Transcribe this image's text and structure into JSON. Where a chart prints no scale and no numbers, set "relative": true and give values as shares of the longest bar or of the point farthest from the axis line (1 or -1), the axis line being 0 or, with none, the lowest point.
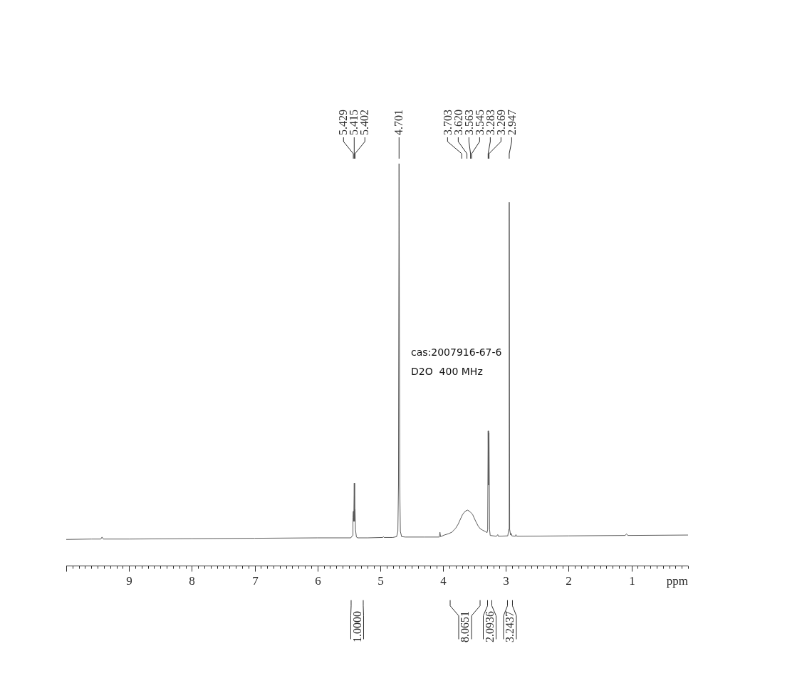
{
  "chart_data": {
    "type": "line",
    "relative": true,
    "color": "#5a5a5a",
    "marker": "none",
    "xlabel": "ppm",
    "xlim": [
      10,
      0.1
    ],
    "xticks": [
      {
        "value": 10,
        "label": null
      },
      {
        "value": 9.9,
        "label": null
      },
      {
        "value": 9.8,
        "label": null
      },
      {
        "value": 9.7,
        "label": null
      },
      {
        "value": 9.6,
        "label": null
      },
      {
        "value": 9.5,
        "label": null
      },
      {
        "value": 9.4,
        "label": null
      },
      {
        "value": 9.3,
        "label": null
      },
      {
        "value": 9.2,
        "label": null
      },
      {
        "value": 9.1,
        "label": null
      },
      9,
      {
        "value": 8.9,
        "label": null
      },
      {
        "value": 8.8,
        "label": null
      },
      {
        "value": 8.7,
        "label": null
      },
      {
        "value": 8.6,
        "label": null
      },
      {
        "value": 8.5,
        "label": null
      },
      {
        "value": 8.4,
        "label": null
      },
      {
        "value": 8.3,
        "label": null
      },
      {
        "value": 8.2,
        "label": null
      },
      {
        "value": 8.1,
        "label": null
      },
      8,
      {
        "value": 7.9,
        "label": null
      },
      {
        "value": 7.8,
        "label": null
      },
      {
        "value": 7.7,
        "label": null
      },
      {
        "value": 7.6,
        "label": null
      },
      {
        "value": 7.5,
        "label": null
      },
      {
        "value": 7.4,
        "label": null
      },
      {
        "value": 7.3,
        "label": null
      },
      {
        "value": 7.2,
        "label": null
      },
      {
        "value": 7.1,
        "label": null
      },
      7,
      {
        "value": 6.9,
        "label": null
      },
      {
        "value": 6.8,
        "label": null
      },
      {
        "value": 6.7,
        "label": null
      },
      {
        "value": 6.6,
        "label": null
      },
      {
        "value": 6.5,
        "label": null
      },
      {
        "value": 6.4,
        "label": null
      },
      {
        "value": 6.3,
        "label": null
      },
      {
        "value": 6.2,
        "label": null
      },
      {
        "value": 6.1,
        "label": null
      },
      6,
      {
        "value": 5.9,
        "label": null
      },
      {
        "value": 5.8,
        "label": null
      },
      {
        "value": 5.7,
        "label": null
      },
      {
        "value": 5.6,
        "label": null
      },
      {
        "value": 5.5,
        "label": null
      },
      {
        "value": 5.4,
        "label": null
      },
      {
        "value": 5.3,
        "label": null
      },
      {
        "value": 5.2,
        "label": null
      },
      {
        "value": 5.1,
        "label": null
      },
      5,
      {
        "value": 4.9,
        "label": null
      },
      {
        "value": 4.8,
        "label": null
      },
      {
        "value": 4.7,
        "label": null
      },
      {
        "value": 4.6,
        "label": null
      },
      {
        "value": 4.5,
        "label": null
      },
      {
        "value": 4.4,
        "label": null
      },
      {
        "value": 4.3,
        "label": null
      },
      {
        "value": 4.2,
        "label": null
      },
      {
        "value": 4.1,
        "label": null
      },
      4,
      {
        "value": 3.9,
        "label": null
      },
      {
        "value": 3.8,
        "label": null
      },
      {
        "value": 3.7,
        "label": null
      },
      {
        "value": 3.6,
        "label": null
      },
      {
        "value": 3.5,
        "label": null
      },
      {
        "value": 3.4,
        "label": null
      },
      {
        "value": 3.3,
        "label": null
      },
      {
        "value": 3.2,
        "label": null
      },
      {
        "value": 3.1,
        "label": null
      },
      3,
      {
        "value": 2.9,
        "label": null
      },
      {
        "value": 2.8,
        "label": null
      },
      {
        "value": 2.7,
        "label": null
      },
      {
        "value": 2.6,
        "label": null
      },
      {
        "value": 2.5,
        "label": null
      },
      {
        "value": 2.4,
        "label": null
      },
      {
        "value": 2.3,
        "label": null
      },
      {
        "value": 2.2,
        "label": null
      },
      {
        "value": 2.1,
        "label": null
      },
      2,
      {
        "value": 1.9,
        "label": null
      },
      {
        "value": 1.8,
        "label": null
      },
      {
        "value": 1.7,
        "label": null
      },
      {
        "value": 1.6,
        "label": null
      },
      {
        "value": 1.5,
        "label": null
      },
      {
        "value": 1.4,
        "label": null
      },
      {
        "value": 1.3,
        "label": null
      },
      {
        "value": 1.2,
        "label": null
      },
      {
        "value": 1.1,
        "label": null
      },
      1,
      {
        "value": 0.9,
        "label": null
      },
      {
        "value": 0.8,
        "label": null
      },
      {
        "value": 0.7,
        "label": null
      },
      {
        "value": 0.6,
        "label": null
      },
      {
        "value": 0.5,
        "label": null
      },
      {
        "value": 0.4,
        "label": null
      },
      {
        "value": 0.3,
        "label": null
      },
      {
        "value": 0.2,
        "label": null
      },
      {
        "value": 0.1,
        "label": null
      }
    ],
    "x": [
      10,
      9.6,
      9.45,
      9.43,
      9.41,
      9,
      8,
      7,
      6,
      5.6,
      5.47,
      5.44,
      5.435,
      5.429,
      5.422,
      5.415,
      5.408,
      5.402,
      5.395,
      5.38,
      5.36,
      5.2,
      4.96,
      4.95,
      4.94,
      4.8,
      4.74,
      4.72,
      4.71,
      4.701,
      4.69,
      4.68,
      4.66,
      4.6,
      4.3,
      4.06,
      4.05,
      4.04,
      3.98,
      3.92,
      3.86,
      3.8,
      3.76,
      3.72,
      3.69,
      3.65,
      3.61,
      3.57,
      3.53,
      3.48,
      3.44,
      3.41,
      3.37,
      3.33,
      3.3,
      3.29,
      3.283,
      3.276,
      3.269,
      3.26,
      3.25,
      3.15,
      3.13,
      3.12,
      2.97,
      2.955,
      2.947,
      2.94,
      2.925,
      2.915,
      2.905,
      2.85,
      2.84,
      2.83,
      2,
      1.1,
      1.08,
      1.06,
      0.1
    ],
    "values": [
      0.065,
      0.066,
      0.066,
      0.071,
      0.066,
      0.066,
      0.067,
      0.068,
      0.069,
      0.069,
      0.069,
      0.075,
      0.12,
      0.135,
      0.11,
      0.205,
      0.11,
      0.14,
      0.09,
      0.071,
      0.069,
      0.069,
      0.07,
      0.072,
      0.07,
      0.07,
      0.072,
      0.085,
      0.2,
      1,
      0.2,
      0.085,
      0.072,
      0.071,
      0.071,
      0.071,
      0.083,
      0.072,
      0.076,
      0.079,
      0.083,
      0.093,
      0.103,
      0.117,
      0.127,
      0.135,
      0.138,
      0.134,
      0.127,
      0.11,
      0.098,
      0.092,
      0.088,
      0.085,
      0.082,
      0.09,
      0.335,
      0.2,
      0.33,
      0.09,
      0.075,
      0.073,
      0.077,
      0.073,
      0.074,
      0.09,
      0.904,
      0.09,
      0.076,
      0.08,
      0.074,
      0.073,
      0.077,
      0.073,
      0.074,
      0.075,
      0.079,
      0.075,
      0.076
    ],
    "annotations": [
      {
        "text": "5.429",
        "x": 5.429
      },
      {
        "text": "5.415",
        "x": 5.415
      },
      {
        "text": "5.402",
        "x": 5.402
      },
      {
        "text": "4.701",
        "x": 4.701
      },
      {
        "text": "3.703",
        "x": 3.703
      },
      {
        "text": "3.620",
        "x": 3.62
      },
      {
        "text": "3.563",
        "x": 3.563
      },
      {
        "text": "3.545",
        "x": 3.545
      },
      {
        "text": "3.283",
        "x": 3.283
      },
      {
        "text": "3.269",
        "x": 3.269
      },
      {
        "text": "2.947",
        "x": 2.947
      },
      "1.0000",
      "8.0651",
      "2.0936",
      "3.2437",
      "cas:2007916-67-6",
      "D2O  400 MHz"
    ]
  }
}
